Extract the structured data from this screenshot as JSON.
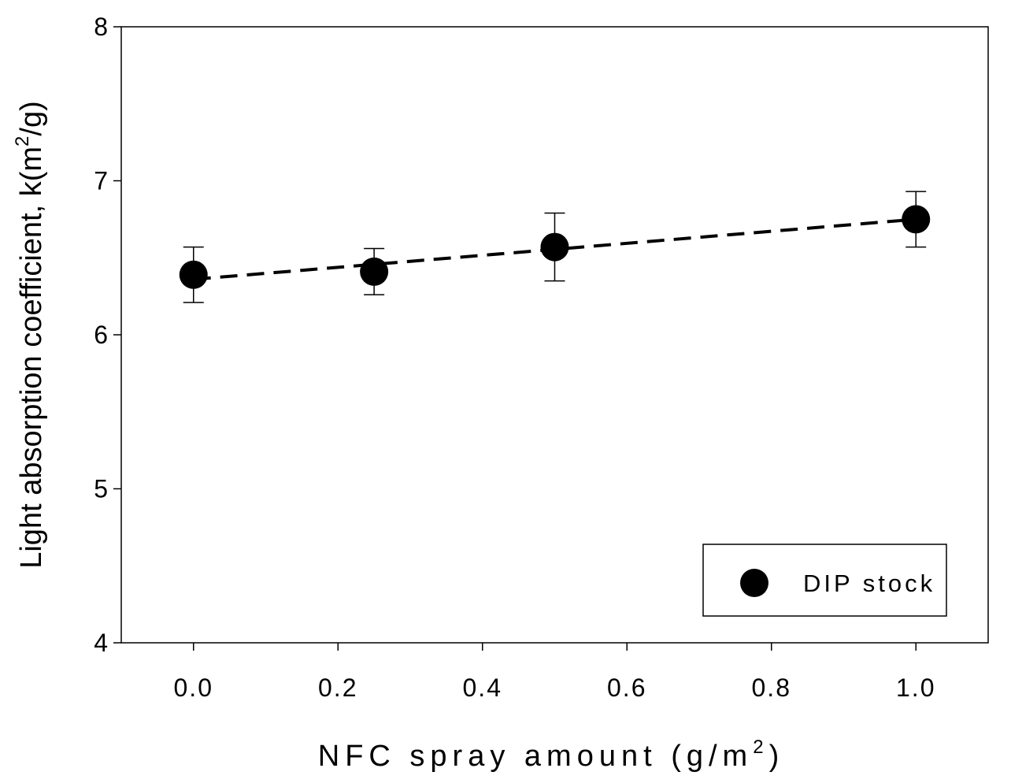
{
  "chart_data": {
    "type": "scatter",
    "title": "",
    "xlabel": {
      "base": "NFC spray amount (g/m",
      "sup": "2",
      "tail": ")"
    },
    "ylabel": {
      "base": "Light absorption coefficient, k(m",
      "sup": "2",
      "tail": "/g)"
    },
    "xlim": [
      -0.1,
      1.1
    ],
    "ylim": [
      4,
      8
    ],
    "x_ticks": [
      0.0,
      0.2,
      0.4,
      0.6,
      0.8,
      1.0
    ],
    "x_tick_labels": [
      "0.0",
      "0.2",
      "0.4",
      "0.6",
      "0.8",
      "1.0"
    ],
    "y_ticks": [
      4,
      5,
      6,
      7,
      8
    ],
    "y_tick_labels": [
      "4",
      "5",
      "6",
      "7",
      "8"
    ],
    "grid": false,
    "legend_position": "bottom-right",
    "series": [
      {
        "name": "DIP stock",
        "marker": "filled-circle",
        "color": "#000000",
        "x": [
          0.0,
          0.25,
          0.5,
          1.0
        ],
        "y": [
          6.39,
          6.41,
          6.57,
          6.75
        ],
        "error": [
          0.18,
          0.15,
          0.22,
          0.18
        ]
      }
    ],
    "trendline": {
      "style": "dashed",
      "color": "#000000",
      "x": [
        0.0,
        1.0
      ],
      "y": [
        6.36,
        6.75
      ]
    }
  }
}
